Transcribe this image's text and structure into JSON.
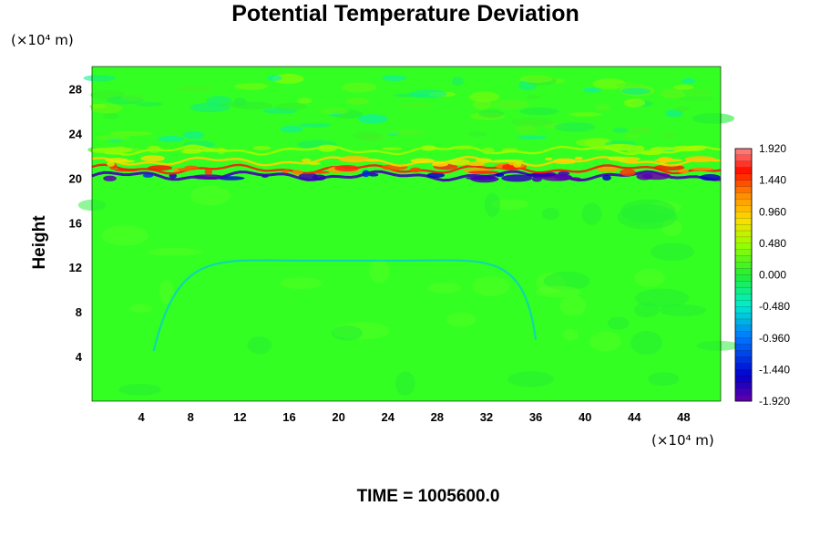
{
  "chart_data": {
    "type": "heatmap",
    "title": "Potential Temperature Deviation",
    "ylabel": "Height",
    "x_unit": "(×10⁴ m)",
    "y_unit": "(×10⁴ m)",
    "footer": "TIME = 1005600.0",
    "xlim": [
      0,
      51
    ],
    "ylim": [
      0,
      30
    ],
    "x_ticks": [
      4,
      8,
      12,
      16,
      20,
      24,
      28,
      32,
      36,
      40,
      44,
      48
    ],
    "y_ticks": [
      4,
      8,
      12,
      16,
      20,
      24,
      28
    ],
    "colorbar": {
      "min": -1.92,
      "max": 1.92,
      "tick_values": [
        1.92,
        1.44,
        0.96,
        0.48,
        0.0,
        -0.48,
        -0.96,
        -1.44,
        -1.92
      ],
      "tick_labels": [
        "1.920",
        "1.440",
        "0.960",
        "0.480",
        "0.000",
        "-0.480",
        "-0.960",
        "-1.440",
        "-1.920"
      ]
    },
    "features": [
      {
        "kind": "band",
        "y": 20.2,
        "value": -1.8
      },
      {
        "kind": "band",
        "y": 20.8,
        "value": 1.6
      },
      {
        "kind": "band",
        "y": 21.5,
        "value": 0.9
      },
      {
        "kind": "band",
        "y": 22.5,
        "value": 0.5
      },
      {
        "kind": "arc",
        "x_range": [
          6,
          36
        ],
        "y_peak": 12.6,
        "value": -0.6
      }
    ]
  }
}
